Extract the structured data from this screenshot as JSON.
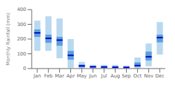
{
  "chart_data": {
    "type": "range_bar",
    "categories": [
      "Jan",
      "Feb",
      "Mar",
      "Apr",
      "May",
      "Jun",
      "Jul",
      "Aug",
      "Sep",
      "Oct",
      "Nov",
      "Dec"
    ],
    "series": [
      {
        "type": "range",
        "color": "#b8d9f0",
        "low": [
          120,
          120,
          70,
          5,
          0,
          0,
          0,
          0,
          0,
          0,
          15,
          95
        ],
        "high": [
          325,
          355,
          340,
          200,
          45,
          25,
          25,
          25,
          20,
          75,
          170,
          315
        ]
      },
      {
        "type": "range",
        "color": "#5b9fd9",
        "low": [
          215,
          175,
          155,
          60,
          8,
          5,
          5,
          5,
          5,
          12,
          55,
          178
        ],
        "high": [
          265,
          230,
          215,
          120,
          28,
          18,
          18,
          16,
          14,
          42,
          115,
          230
        ]
      },
      {
        "type": "median",
        "color": "#0000cc",
        "values": [
          242,
          205,
          193,
          90,
          18,
          12,
          10,
          9,
          8,
          20,
          80,
          210
        ]
      }
    ],
    "ylabel": "Monthly Rainfall (mm)",
    "ylim": [
      0,
      400
    ],
    "yticks": [
      0,
      100,
      200,
      300,
      400
    ],
    "grid": false
  }
}
